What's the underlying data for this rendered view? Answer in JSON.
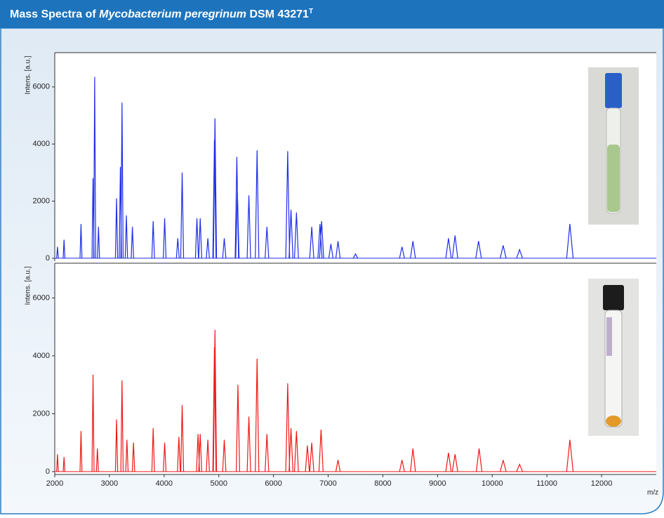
{
  "header": {
    "title_start": "Mass Spectra of",
    "title_italic": "Mycobacterium peregrinum",
    "title_end": "DSM 43271",
    "title_sup": "T"
  },
  "chart_data": [
    {
      "type": "spectrum",
      "ylabel": "Intens. [a.u.]",
      "color": "#1f2ee8",
      "xlim": [
        2000,
        13000
      ],
      "ylim": [
        -100,
        7200
      ],
      "yticks": [
        0,
        2000,
        4000,
        6000
      ],
      "x": [
        2050,
        2170,
        2480,
        2700,
        2730,
        2800,
        3130,
        3200,
        3230,
        3310,
        3420,
        3800,
        4010,
        4250,
        4330,
        4600,
        4660,
        4800,
        4920,
        4930,
        5100,
        5330,
        5340,
        5550,
        5700,
        5880,
        6260,
        6320,
        6420,
        6700,
        6850,
        6880,
        7050,
        7180,
        7500,
        8350,
        8550,
        9200,
        9320,
        9750,
        10200,
        10500,
        11420
      ],
      "values": [
        400,
        650,
        1200,
        2800,
        6350,
        1100,
        2100,
        3200,
        5450,
        1500,
        1100,
        1300,
        1400,
        700,
        3000,
        1400,
        1400,
        700,
        4150,
        4900,
        700,
        3550,
        2300,
        2200,
        3780,
        1100,
        3750,
        1700,
        1600,
        1100,
        1200,
        1300,
        500,
        600,
        150,
        400,
        600,
        700,
        800,
        600,
        450,
        300,
        1200
      ]
    },
    {
      "type": "spectrum",
      "ylabel": "Intens. [a.u.]",
      "xlabel": "m/z",
      "color": "#f01818",
      "xlim": [
        2000,
        13000
      ],
      "ylim": [
        -100,
        7200
      ],
      "yticks": [
        0,
        2000,
        4000,
        6000
      ],
      "xticks": [
        2000,
        3000,
        4000,
        5000,
        6000,
        7000,
        8000,
        9000,
        10000,
        11000,
        12000
      ],
      "x": [
        2050,
        2170,
        2480,
        2700,
        2780,
        3130,
        3230,
        3320,
        3440,
        3800,
        4010,
        4270,
        4330,
        4620,
        4660,
        4800,
        4920,
        4930,
        5100,
        5350,
        5550,
        5700,
        5880,
        6260,
        6320,
        6420,
        6620,
        6700,
        6870,
        7180,
        8350,
        8550,
        9200,
        9320,
        9760,
        10200,
        10500,
        11420
      ],
      "values": [
        600,
        500,
        1400,
        3350,
        800,
        1800,
        3150,
        1100,
        1000,
        1500,
        1000,
        1200,
        2300,
        1300,
        1300,
        1100,
        4300,
        4900,
        1100,
        3000,
        1900,
        3900,
        1300,
        3050,
        1500,
        1400,
        900,
        1000,
        1450,
        400,
        400,
        800,
        650,
        600,
        800,
        400,
        250,
        1100
      ]
    }
  ]
}
